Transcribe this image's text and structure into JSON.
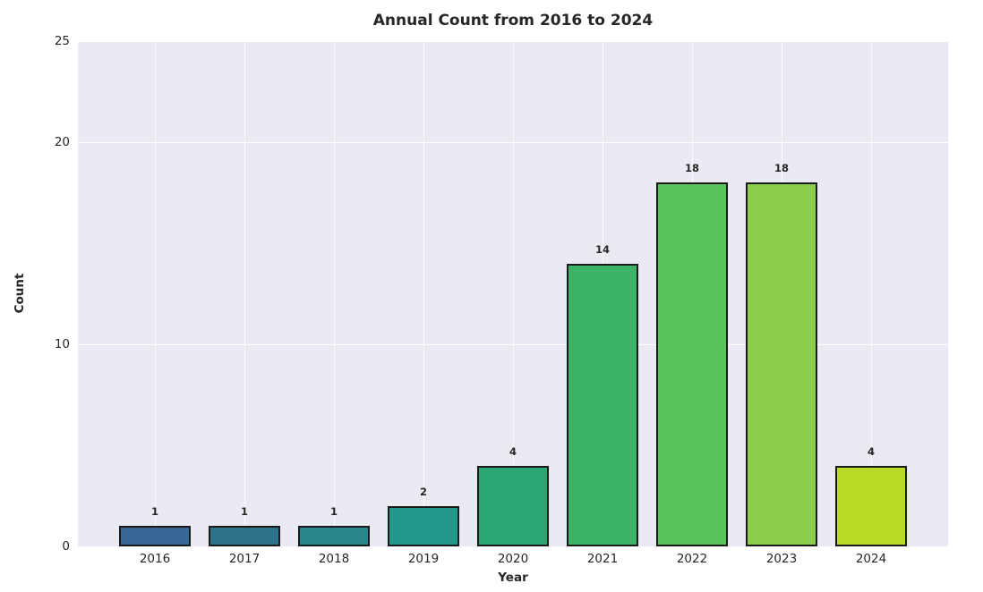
{
  "chart_data": {
    "type": "bar",
    "title": "Annual Count from 2016 to 2024",
    "xlabel": "Year",
    "ylabel": "Count",
    "categories": [
      "2016",
      "2017",
      "2018",
      "2019",
      "2020",
      "2021",
      "2022",
      "2023",
      "2024"
    ],
    "values": [
      1,
      1,
      1,
      2,
      4,
      14,
      18,
      18,
      4
    ],
    "bar_colors": [
      "#396795",
      "#2e7389",
      "#27878d",
      "#219a8b",
      "#2aa874",
      "#3cb465",
      "#5ac35d",
      "#8ace4b",
      "#b9db26"
    ],
    "yticks": [
      0,
      10,
      20,
      25
    ],
    "ylim": [
      0,
      25
    ],
    "grid": true,
    "legend_position": "none",
    "colors": {
      "figure_bg": "#ffffff",
      "plot_bg": "#eaeaf2",
      "gridline": "#ffffff",
      "text": "#262626",
      "bar_edge": "#1a1a1a"
    }
  }
}
